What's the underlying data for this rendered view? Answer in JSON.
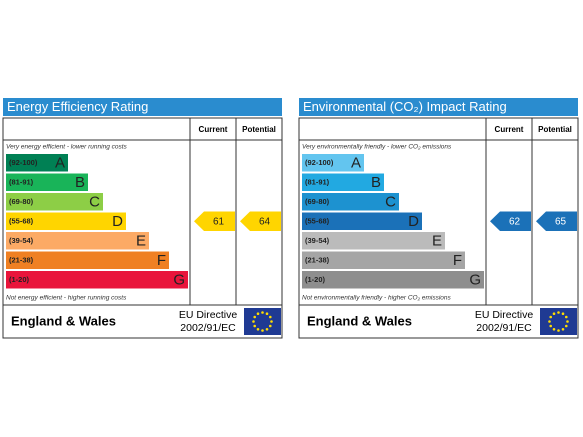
{
  "panels": [
    {
      "title": "Energy Efficiency Rating",
      "columns": [
        "Current",
        "Potential"
      ],
      "top_note": "Very energy efficient - lower running costs",
      "bands": [
        {
          "range": "(92-100)",
          "letter": "A",
          "color": "#008054"
        },
        {
          "range": "(81-91)",
          "letter": "B",
          "color": "#19b459"
        },
        {
          "range": "(69-80)",
          "letter": "C",
          "color": "#8dce46"
        },
        {
          "range": "(55-68)",
          "letter": "D",
          "color": "#ffd500"
        },
        {
          "range": "(39-54)",
          "letter": "E",
          "color": "#fcaa65"
        },
        {
          "range": "(21-38)",
          "letter": "F",
          "color": "#ef8023"
        },
        {
          "range": "(1-20)",
          "letter": "G",
          "color": "#e9153b"
        }
      ],
      "bottom_note": "Not energy efficient - higher running costs",
      "current": 61,
      "potential": 64,
      "footer": {
        "region": "England & Wales",
        "directive": "EU Directive",
        "code": "2002/91/EC"
      }
    },
    {
      "title": "Environmental (CO₂) Impact Rating",
      "columns": [
        "Current",
        "Potential"
      ],
      "top_note": "Very environmentally friendly - lower CO₂ emissions",
      "bands": [
        {
          "range": "(92-100)",
          "letter": "A",
          "color": "#63c5ef"
        },
        {
          "range": "(81-91)",
          "letter": "B",
          "color": "#22a9e1"
        },
        {
          "range": "(69-80)",
          "letter": "C",
          "color": "#1d92d0"
        },
        {
          "range": "(55-68)",
          "letter": "D",
          "color": "#1b71b8"
        },
        {
          "range": "(39-54)",
          "letter": "E",
          "color": "#bbbbbb"
        },
        {
          "range": "(21-38)",
          "letter": "F",
          "color": "#a5a5a5"
        },
        {
          "range": "(1-20)",
          "letter": "G",
          "color": "#8e8e8e"
        }
      ],
      "bottom_note": "Not environmentally friendly - higher CO₂ emissions",
      "current": 62,
      "potential": 65,
      "footer": {
        "region": "England & Wales",
        "directive": "EU Directive",
        "code": "2002/91/EC"
      }
    }
  ]
}
